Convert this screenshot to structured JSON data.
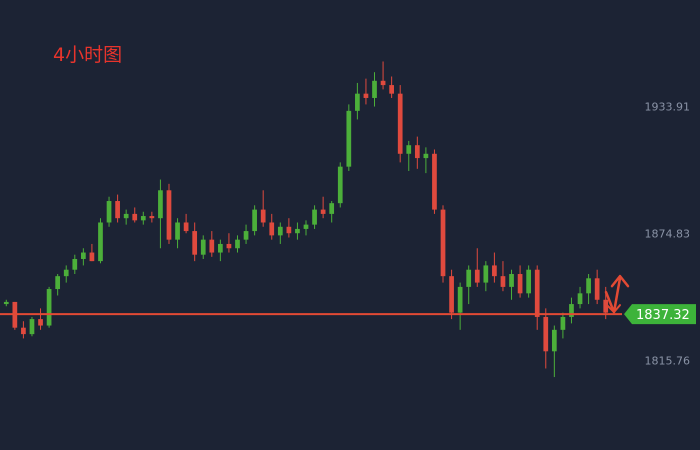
{
  "title": "4小时图",
  "colors": {
    "background": "#1c2334",
    "up": "#4caf3a",
    "down": "#e04a3e",
    "level_line": "#e24a34",
    "price_tag": "#3db33a",
    "axis_text": "#8a93a6",
    "annotation": "#e24a34"
  },
  "chart_data": {
    "type": "candlestick",
    "title": "4小时图",
    "y_axis_ticks": [
      1933.91,
      1874.83,
      1815.76
    ],
    "ylim": [
      1788,
      1965
    ],
    "current_price": 1837.32,
    "current_price_label": "1837.32",
    "horizontal_level": 1837.32,
    "annotation": "up-down arrows near last candles",
    "candles": [
      [
        1842,
        1844,
        1841,
        1843
      ],
      [
        1843,
        1843,
        1830,
        1831
      ],
      [
        1831,
        1834,
        1826,
        1828
      ],
      [
        1828,
        1836,
        1827,
        1835
      ],
      [
        1835,
        1840,
        1830,
        1832
      ],
      [
        1832,
        1850,
        1831,
        1849
      ],
      [
        1849,
        1856,
        1846,
        1855
      ],
      [
        1855,
        1860,
        1852,
        1858
      ],
      [
        1858,
        1865,
        1856,
        1863
      ],
      [
        1863,
        1868,
        1860,
        1866
      ],
      [
        1866,
        1870,
        1862,
        1862
      ],
      [
        1862,
        1882,
        1861,
        1880
      ],
      [
        1880,
        1892,
        1878,
        1890
      ],
      [
        1890,
        1893,
        1880,
        1882
      ],
      [
        1882,
        1886,
        1879,
        1884
      ],
      [
        1884,
        1887,
        1880,
        1881
      ],
      [
        1881,
        1885,
        1879,
        1883
      ],
      [
        1883,
        1885,
        1880,
        1882
      ],
      [
        1882,
        1900,
        1868,
        1895
      ],
      [
        1895,
        1898,
        1870,
        1872
      ],
      [
        1872,
        1882,
        1868,
        1880
      ],
      [
        1880,
        1884,
        1875,
        1876
      ],
      [
        1876,
        1880,
        1862,
        1865
      ],
      [
        1865,
        1874,
        1863,
        1872
      ],
      [
        1872,
        1876,
        1864,
        1866
      ],
      [
        1866,
        1872,
        1862,
        1870
      ],
      [
        1870,
        1875,
        1866,
        1868
      ],
      [
        1868,
        1874,
        1866,
        1872
      ],
      [
        1872,
        1879,
        1870,
        1876
      ],
      [
        1876,
        1888,
        1874,
        1886
      ],
      [
        1886,
        1895,
        1878,
        1880
      ],
      [
        1880,
        1884,
        1872,
        1874
      ],
      [
        1874,
        1880,
        1870,
        1878
      ],
      [
        1878,
        1882,
        1873,
        1875
      ],
      [
        1875,
        1880,
        1872,
        1877
      ],
      [
        1877,
        1881,
        1874,
        1879
      ],
      [
        1879,
        1888,
        1877,
        1886
      ],
      [
        1886,
        1892,
        1882,
        1884
      ],
      [
        1884,
        1890,
        1880,
        1889
      ],
      [
        1889,
        1908,
        1887,
        1906
      ],
      [
        1906,
        1935,
        1904,
        1932
      ],
      [
        1932,
        1945,
        1928,
        1940
      ],
      [
        1940,
        1947,
        1935,
        1938
      ],
      [
        1938,
        1950,
        1934,
        1946
      ],
      [
        1946,
        1955,
        1942,
        1944
      ],
      [
        1944,
        1948,
        1938,
        1940
      ],
      [
        1940,
        1944,
        1908,
        1912
      ],
      [
        1912,
        1918,
        1904,
        1916
      ],
      [
        1916,
        1920,
        1905,
        1910
      ],
      [
        1910,
        1915,
        1903,
        1912
      ],
      [
        1912,
        1914,
        1884,
        1886
      ],
      [
        1886,
        1888,
        1852,
        1855
      ],
      [
        1855,
        1858,
        1835,
        1838
      ],
      [
        1838,
        1852,
        1830,
        1850
      ],
      [
        1850,
        1860,
        1842,
        1858
      ],
      [
        1858,
        1868,
        1850,
        1852
      ],
      [
        1852,
        1862,
        1848,
        1860
      ],
      [
        1860,
        1866,
        1852,
        1855
      ],
      [
        1855,
        1862,
        1848,
        1850
      ],
      [
        1850,
        1858,
        1844,
        1856
      ],
      [
        1856,
        1860,
        1845,
        1847
      ],
      [
        1847,
        1860,
        1845,
        1858
      ],
      [
        1858,
        1860,
        1830,
        1836
      ],
      [
        1836,
        1840,
        1812,
        1820
      ],
      [
        1820,
        1832,
        1808,
        1830
      ],
      [
        1830,
        1838,
        1826,
        1836
      ],
      [
        1836,
        1845,
        1833,
        1842
      ],
      [
        1842,
        1850,
        1840,
        1847
      ],
      [
        1847,
        1856,
        1842,
        1854
      ],
      [
        1854,
        1858,
        1842,
        1844
      ],
      [
        1844,
        1850,
        1835,
        1838
      ]
    ]
  }
}
